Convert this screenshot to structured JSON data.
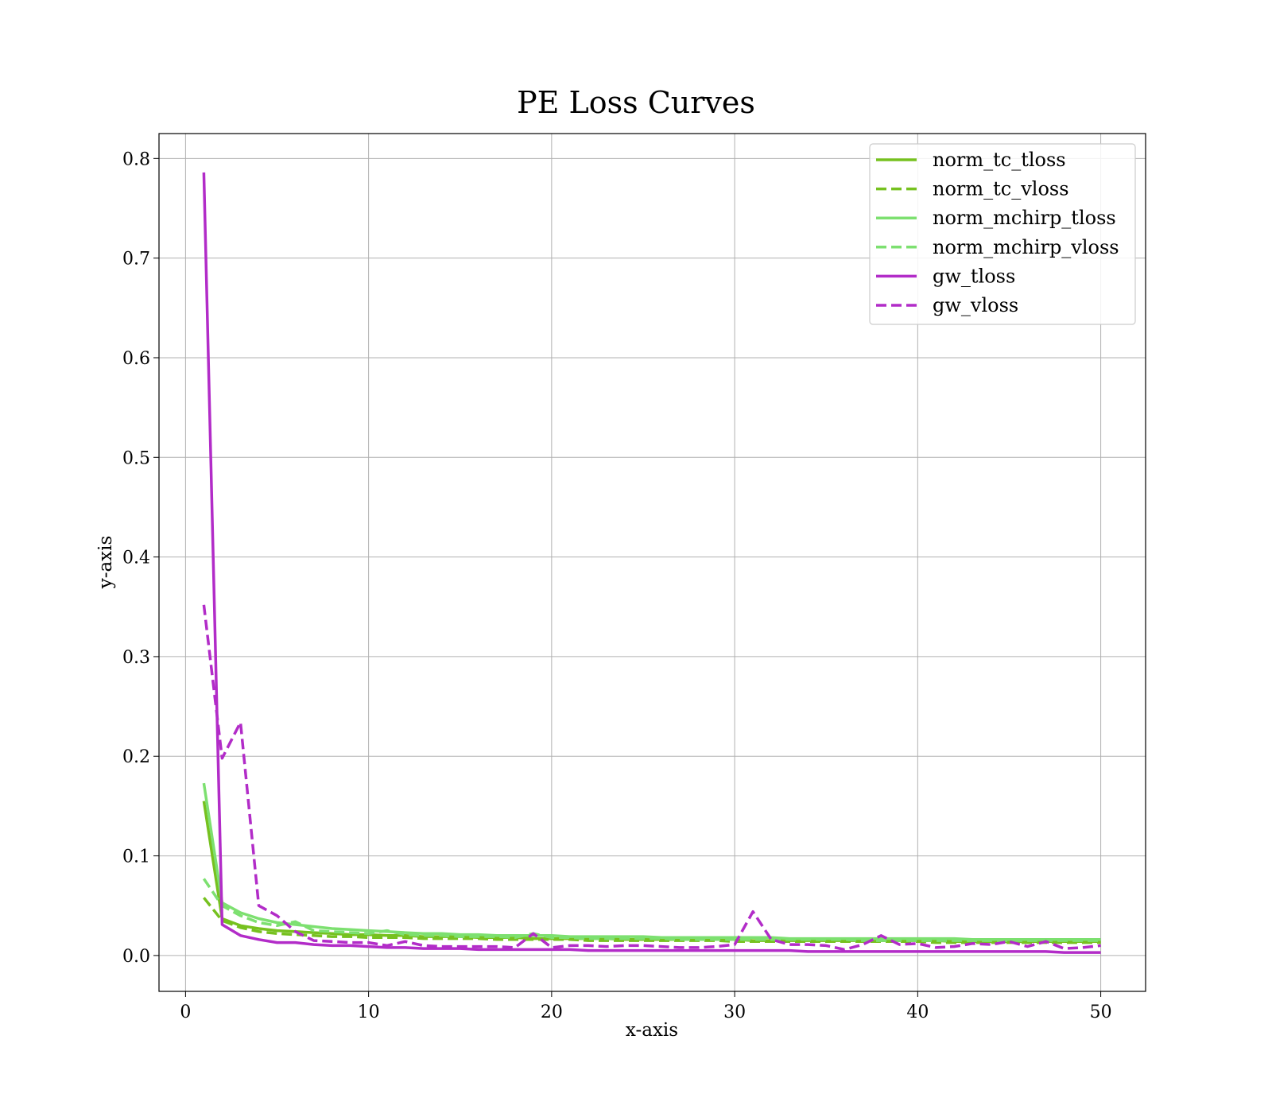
{
  "chart_data": {
    "type": "line",
    "title": "PE Loss Curves",
    "xlabel": "x-axis",
    "ylabel": "y-axis",
    "xlim": [
      -1.45,
      52.45
    ],
    "ylim": [
      -0.036,
      0.825
    ],
    "xticks": [
      0,
      10,
      20,
      30,
      40,
      50
    ],
    "xtick_labels": [
      "0",
      "10",
      "20",
      "30",
      "40",
      "50"
    ],
    "yticks": [
      0.0,
      0.1,
      0.2,
      0.3,
      0.4,
      0.5,
      0.6,
      0.7,
      0.8
    ],
    "ytick_labels": [
      "0.0",
      "0.1",
      "0.2",
      "0.3",
      "0.4",
      "0.5",
      "0.6",
      "0.7",
      "0.8"
    ],
    "grid": true,
    "legend_position": "top-right",
    "x": [
      1,
      2,
      3,
      4,
      5,
      6,
      7,
      8,
      9,
      10,
      11,
      12,
      13,
      14,
      15,
      16,
      17,
      18,
      19,
      20,
      21,
      22,
      23,
      24,
      25,
      26,
      27,
      28,
      29,
      30,
      31,
      32,
      33,
      34,
      35,
      36,
      37,
      38,
      39,
      40,
      41,
      42,
      43,
      44,
      45,
      46,
      47,
      48,
      49,
      50
    ],
    "series": [
      {
        "name": "norm_tc_tloss",
        "color": "#76c11f",
        "dash": "solid",
        "values": [
          0.155,
          0.037,
          0.03,
          0.027,
          0.025,
          0.024,
          0.023,
          0.022,
          0.021,
          0.021,
          0.02,
          0.02,
          0.019,
          0.019,
          0.019,
          0.018,
          0.018,
          0.018,
          0.017,
          0.017,
          0.017,
          0.017,
          0.017,
          0.016,
          0.016,
          0.016,
          0.016,
          0.016,
          0.016,
          0.016,
          0.015,
          0.015,
          0.015,
          0.015,
          0.015,
          0.015,
          0.015,
          0.015,
          0.015,
          0.015,
          0.015,
          0.014,
          0.014,
          0.014,
          0.014,
          0.014,
          0.014,
          0.014,
          0.014,
          0.014
        ]
      },
      {
        "name": "norm_tc_vloss",
        "color": "#76c11f",
        "dash": "dashed",
        "values": [
          0.058,
          0.035,
          0.028,
          0.024,
          0.022,
          0.021,
          0.02,
          0.019,
          0.019,
          0.018,
          0.018,
          0.018,
          0.017,
          0.017,
          0.017,
          0.017,
          0.016,
          0.016,
          0.016,
          0.016,
          0.016,
          0.015,
          0.015,
          0.015,
          0.015,
          0.015,
          0.015,
          0.015,
          0.015,
          0.014,
          0.014,
          0.014,
          0.014,
          0.014,
          0.014,
          0.014,
          0.014,
          0.014,
          0.014,
          0.014,
          0.013,
          0.013,
          0.013,
          0.013,
          0.013,
          0.013,
          0.013,
          0.013,
          0.013,
          0.013
        ]
      },
      {
        "name": "norm_mchirp_tloss",
        "color": "#7de070",
        "dash": "solid",
        "values": [
          0.173,
          0.053,
          0.043,
          0.037,
          0.033,
          0.031,
          0.029,
          0.027,
          0.026,
          0.025,
          0.024,
          0.023,
          0.022,
          0.022,
          0.021,
          0.021,
          0.02,
          0.02,
          0.02,
          0.02,
          0.019,
          0.019,
          0.019,
          0.019,
          0.019,
          0.018,
          0.018,
          0.018,
          0.018,
          0.018,
          0.018,
          0.018,
          0.017,
          0.017,
          0.017,
          0.017,
          0.017,
          0.017,
          0.017,
          0.017,
          0.017,
          0.017,
          0.016,
          0.016,
          0.016,
          0.016,
          0.016,
          0.016,
          0.016,
          0.016
        ]
      },
      {
        "name": "norm_mchirp_vloss",
        "color": "#7de070",
        "dash": "dashed",
        "values": [
          0.077,
          0.05,
          0.04,
          0.033,
          0.03,
          0.034,
          0.025,
          0.024,
          0.023,
          0.022,
          0.025,
          0.021,
          0.02,
          0.02,
          0.019,
          0.019,
          0.019,
          0.018,
          0.022,
          0.018,
          0.018,
          0.017,
          0.017,
          0.017,
          0.017,
          0.017,
          0.016,
          0.016,
          0.016,
          0.016,
          0.016,
          0.016,
          0.016,
          0.016,
          0.016,
          0.016,
          0.015,
          0.015,
          0.015,
          0.015,
          0.015,
          0.015,
          0.015,
          0.015,
          0.015,
          0.015,
          0.015,
          0.015,
          0.015,
          0.015
        ]
      },
      {
        "name": "gw_tloss",
        "color": "#b22cc8",
        "dash": "solid",
        "values": [
          0.786,
          0.031,
          0.02,
          0.016,
          0.013,
          0.013,
          0.011,
          0.01,
          0.01,
          0.009,
          0.008,
          0.008,
          0.007,
          0.007,
          0.007,
          0.006,
          0.006,
          0.006,
          0.006,
          0.006,
          0.006,
          0.005,
          0.005,
          0.005,
          0.005,
          0.005,
          0.005,
          0.005,
          0.005,
          0.005,
          0.005,
          0.005,
          0.005,
          0.004,
          0.004,
          0.004,
          0.004,
          0.004,
          0.004,
          0.004,
          0.004,
          0.004,
          0.004,
          0.004,
          0.004,
          0.004,
          0.004,
          0.003,
          0.003,
          0.003
        ]
      },
      {
        "name": "gw_vloss",
        "color": "#b22cc8",
        "dash": "dashed",
        "values": [
          0.352,
          0.198,
          0.234,
          0.05,
          0.04,
          0.024,
          0.015,
          0.014,
          0.013,
          0.013,
          0.01,
          0.014,
          0.01,
          0.009,
          0.009,
          0.009,
          0.009,
          0.008,
          0.022,
          0.008,
          0.01,
          0.01,
          0.009,
          0.01,
          0.01,
          0.009,
          0.008,
          0.008,
          0.009,
          0.011,
          0.044,
          0.016,
          0.011,
          0.011,
          0.01,
          0.006,
          0.011,
          0.02,
          0.011,
          0.012,
          0.008,
          0.009,
          0.012,
          0.011,
          0.014,
          0.009,
          0.014,
          0.007,
          0.008,
          0.01
        ]
      }
    ]
  }
}
